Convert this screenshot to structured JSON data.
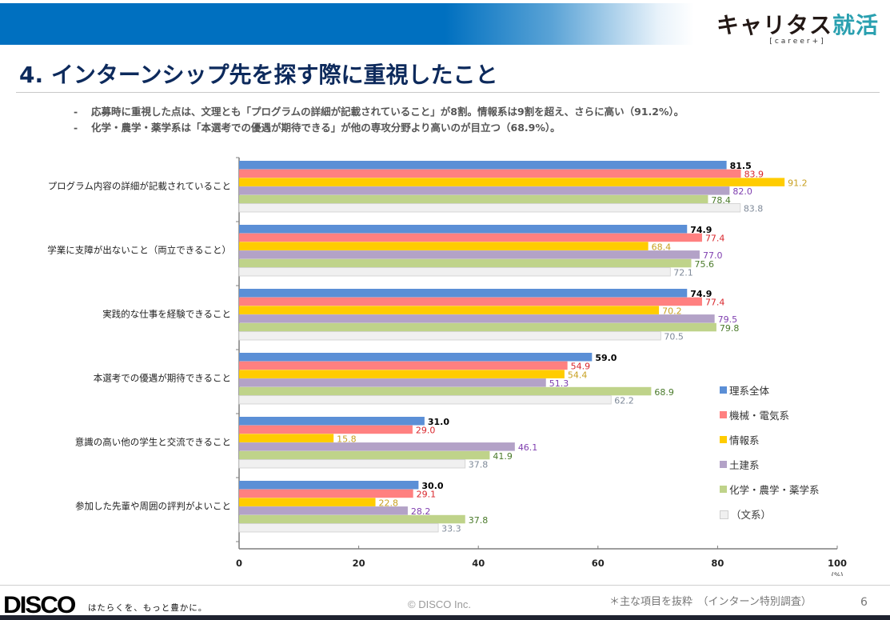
{
  "header": {
    "brand_main": "キャリタス",
    "brand_accent": "就活",
    "brand_sub": "[career+]",
    "title": "4. インターンシップ先を探す際に重視したこと"
  },
  "bullets": [
    {
      "dash": "-",
      "text": "応募時に重視した点は、文理とも「プログラムの詳細が記載されていること」が8割。情報系は9割を超え、さらに高い（91.2%）。"
    },
    {
      "dash": "-",
      "text": "化学・農学・薬学系は「本選考での優遇が期待できる」が他の専攻分野より高いのが目立つ（68.9%）。"
    }
  ],
  "colors": {
    "header_blue": "#0070c0",
    "title_navy": "#0d2a5c"
  },
  "chart_data": {
    "type": "bar",
    "orientation": "horizontal",
    "title": "",
    "xlabel": "(%)",
    "ylabel": "",
    "xlim": [
      0,
      100
    ],
    "xticks": [
      0,
      20,
      40,
      60,
      80,
      100
    ],
    "grid": false,
    "legend_position": "right",
    "categories": [
      "プログラム内容の詳細が記載されていること",
      "学業に支障が出ないこと（両立できること）",
      "実践的な仕事を経験できること",
      "本選考での優遇が期待できること",
      "意識の高い他の学生と交流できること",
      "参加した先輩や周囲の評判がよいこと"
    ],
    "series": [
      {
        "name": "理系全体",
        "color": "#5b8fd6",
        "label_color": "#000000",
        "label_bold": true,
        "values": [
          81.5,
          74.9,
          74.9,
          59.0,
          31.0,
          30.0
        ]
      },
      {
        "name": "機械・電気系",
        "color": "#ff8080",
        "label_color": "#d9262c",
        "label_bold": false,
        "values": [
          83.9,
          77.4,
          77.4,
          54.9,
          29.0,
          29.1
        ]
      },
      {
        "name": "情報系",
        "color": "#ffcc00",
        "label_color": "#c8a020",
        "label_bold": false,
        "values": [
          91.2,
          68.4,
          70.2,
          54.4,
          15.8,
          22.8
        ]
      },
      {
        "name": "土建系",
        "color": "#b3a2c7",
        "label_color": "#8040b0",
        "label_bold": false,
        "values": [
          82.0,
          77.0,
          79.5,
          51.3,
          46.1,
          28.2
        ]
      },
      {
        "name": "化学・農学・薬学系",
        "color": "#bfd38a",
        "label_color": "#4a7a2a",
        "label_bold": false,
        "values": [
          78.4,
          75.6,
          79.8,
          68.9,
          41.9,
          37.8
        ]
      },
      {
        "name": "（文系）",
        "color": "#f0f0f0",
        "label_color": "#7f8a99",
        "label_bold": false,
        "values": [
          83.8,
          72.1,
          70.5,
          62.2,
          37.8,
          33.3
        ]
      }
    ]
  },
  "footer": {
    "logo": "DISCO",
    "tagline": "はたらくを、もっと豊かに。",
    "copyright": "© DISCO Inc.",
    "note": "＊主な項目を抜粋　（インターン特別調査）",
    "page_number": "6"
  }
}
